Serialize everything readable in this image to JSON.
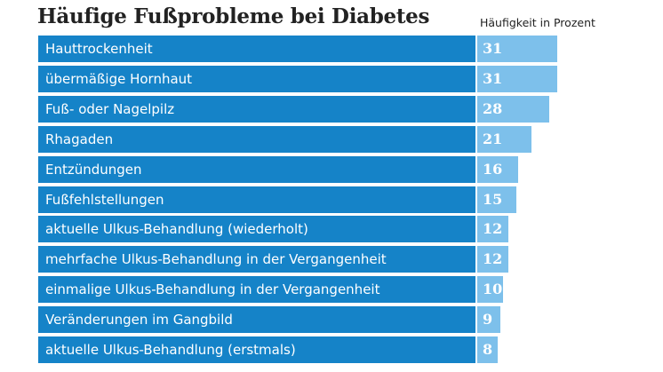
{
  "chart_data": {
    "type": "bar",
    "title": "Häufige Fußprobleme bei Diabetes",
    "value_label": "Häufigkeit in Prozent",
    "categories": [
      "Hauttrockenheit",
      "übermäßige Hornhaut",
      "Fuß- oder Nagelpilz",
      "Rhagaden",
      "Entzündungen",
      "Fußfehlstellungen",
      "aktuelle Ulkus-Behandlung (wiederholt)",
      "mehrfache Ulkus-Behandlung in der Vergangenheit",
      "einmalige Ulkus-Behandlung in der Vergangenheit",
      "Veränderungen im Gangbild",
      "aktuelle Ulkus-Behandlung (erstmals)"
    ],
    "values": [
      31,
      31,
      28,
      21,
      16,
      15,
      12,
      12,
      10,
      9,
      8
    ],
    "orientation": "horizontal",
    "label_bar_color": "#1583c8",
    "value_bar_color": "#7dc0eb"
  }
}
